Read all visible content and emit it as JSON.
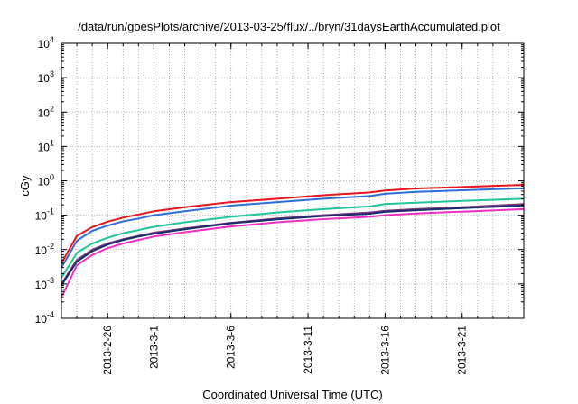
{
  "chart_data": {
    "type": "line",
    "title": "/data/run/goesPlots/archive/2013-03-25/flux/../bryn/31daysEarthAccumulated.plot",
    "xlabel": "Coordinated Universal Time (UTC)",
    "ylabel": "cGy",
    "y_scale": "log",
    "ylim": [
      0.0001,
      10000
    ],
    "y_ticks": [
      {
        "value": 0.0001,
        "base": "10",
        "exp": "-4"
      },
      {
        "value": 0.001,
        "base": "10",
        "exp": "-3"
      },
      {
        "value": 0.01,
        "base": "10",
        "exp": "-2"
      },
      {
        "value": 0.1,
        "base": "10",
        "exp": "-1"
      },
      {
        "value": 1,
        "base": "10",
        "exp": "0"
      },
      {
        "value": 10,
        "base": "10",
        "exp": "1"
      },
      {
        "value": 100,
        "base": "10",
        "exp": "2"
      },
      {
        "value": 1000,
        "base": "10",
        "exp": "3"
      },
      {
        "value": 10000,
        "base": "10",
        "exp": "4"
      }
    ],
    "xlim": [
      "2013-02-23",
      "2013-03-25"
    ],
    "x_ticks": [
      "2013-2-26",
      "2013-3-1",
      "2013-3-6",
      "2013-3-11",
      "2013-3-16",
      "2013-3-21"
    ],
    "x_tick_dates": [
      "2013-02-26",
      "2013-03-01",
      "2013-03-06",
      "2013-03-11",
      "2013-03-16",
      "2013-03-21"
    ],
    "grid": true,
    "x": [
      "2013-02-23",
      "2013-02-24",
      "2013-02-25",
      "2013-02-26",
      "2013-02-27",
      "2013-02-28",
      "2013-03-01",
      "2013-03-03",
      "2013-03-06",
      "2013-03-09",
      "2013-03-12",
      "2013-03-15",
      "2013-03-16",
      "2013-03-18",
      "2013-03-21",
      "2013-03-25"
    ],
    "series": [
      {
        "color": "#e8141e",
        "values": [
          0.004,
          0.025,
          0.045,
          0.065,
          0.085,
          0.105,
          0.13,
          0.17,
          0.24,
          0.3,
          0.38,
          0.46,
          0.52,
          0.6,
          0.66,
          0.76
        ]
      },
      {
        "color": "#2f6ed8",
        "values": [
          0.003,
          0.018,
          0.035,
          0.05,
          0.066,
          0.08,
          0.1,
          0.13,
          0.19,
          0.24,
          0.3,
          0.36,
          0.42,
          0.48,
          0.53,
          0.61
        ]
      },
      {
        "color": "#22c59a",
        "values": [
          0.0015,
          0.008,
          0.015,
          0.022,
          0.03,
          0.037,
          0.046,
          0.062,
          0.09,
          0.12,
          0.15,
          0.18,
          0.21,
          0.23,
          0.26,
          0.3
        ]
      },
      {
        "color": "#7a3c78",
        "values": [
          0.001,
          0.005,
          0.01,
          0.015,
          0.02,
          0.025,
          0.031,
          0.041,
          0.06,
          0.08,
          0.1,
          0.12,
          0.135,
          0.15,
          0.17,
          0.21
        ]
      },
      {
        "color": "#1a2a6e",
        "values": [
          0.0009,
          0.0045,
          0.009,
          0.014,
          0.019,
          0.024,
          0.029,
          0.039,
          0.058,
          0.076,
          0.095,
          0.11,
          0.125,
          0.14,
          0.16,
          0.19
        ]
      },
      {
        "color": "#f030c0",
        "values": [
          0.0004,
          0.0035,
          0.007,
          0.011,
          0.015,
          0.019,
          0.024,
          0.032,
          0.047,
          0.062,
          0.077,
          0.09,
          0.1,
          0.112,
          0.127,
          0.15
        ]
      }
    ]
  }
}
